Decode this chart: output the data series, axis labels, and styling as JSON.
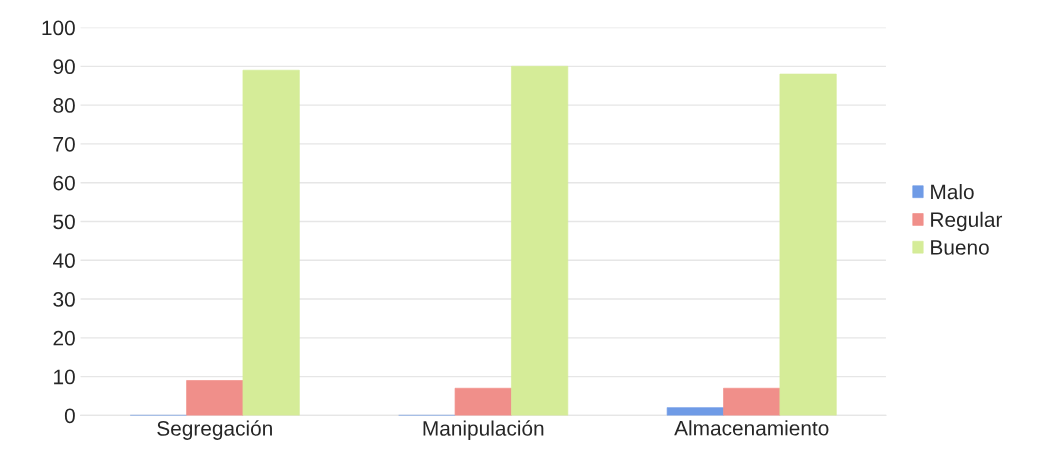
{
  "chart_data": {
    "type": "bar",
    "categories": [
      "Segregación",
      "Manipulación",
      "Almacenamiento"
    ],
    "series": [
      {
        "name": "Malo",
        "color": "#6f9be6",
        "values": [
          0,
          0,
          2
        ]
      },
      {
        "name": "Regular",
        "color": "#f08f8a",
        "values": [
          9,
          7,
          7
        ]
      },
      {
        "name": "Bueno",
        "color": "#d5ec98",
        "values": [
          89,
          90,
          88
        ]
      }
    ],
    "ylim": [
      0,
      100
    ],
    "yticks": [
      0,
      10,
      20,
      30,
      40,
      50,
      60,
      70,
      80,
      90,
      100
    ],
    "grid": "y",
    "legend": "right"
  }
}
